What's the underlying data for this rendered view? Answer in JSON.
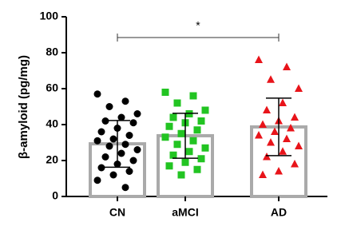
{
  "chart_data": {
    "type": "bar",
    "y_label": "β-amyloid (pg/mg)",
    "categories": [
      "CN",
      "aMCI",
      "AD"
    ],
    "values": [
      29.3,
      33.8,
      38.7
    ],
    "errors": [
      13,
      12.5,
      16
    ],
    "bar_color": "#aaaaaa",
    "points": [
      [
        57,
        53,
        50,
        46,
        44,
        42,
        41,
        38,
        36,
        34,
        32,
        31,
        29,
        28,
        26,
        24,
        22,
        20,
        18,
        16,
        14,
        12,
        9,
        5
      ],
      [
        58,
        56,
        52,
        48,
        46,
        44,
        42,
        41,
        39,
        37,
        35,
        33,
        31,
        29,
        27,
        25,
        23,
        21,
        19,
        17,
        15,
        12
      ],
      [
        76,
        72,
        65,
        60,
        52,
        48,
        44,
        42,
        40,
        38,
        36,
        34,
        32,
        30,
        28,
        25,
        22,
        18,
        14,
        12
      ]
    ],
    "point_colors": [
      "#000000",
      "#22c422",
      "#e8141a"
    ],
    "point_shapes": [
      "circle",
      "square",
      "triangle"
    ],
    "significance": "*",
    "ylim": [
      0,
      100
    ],
    "yticks": [
      0,
      20,
      40,
      60,
      80,
      100
    ]
  }
}
